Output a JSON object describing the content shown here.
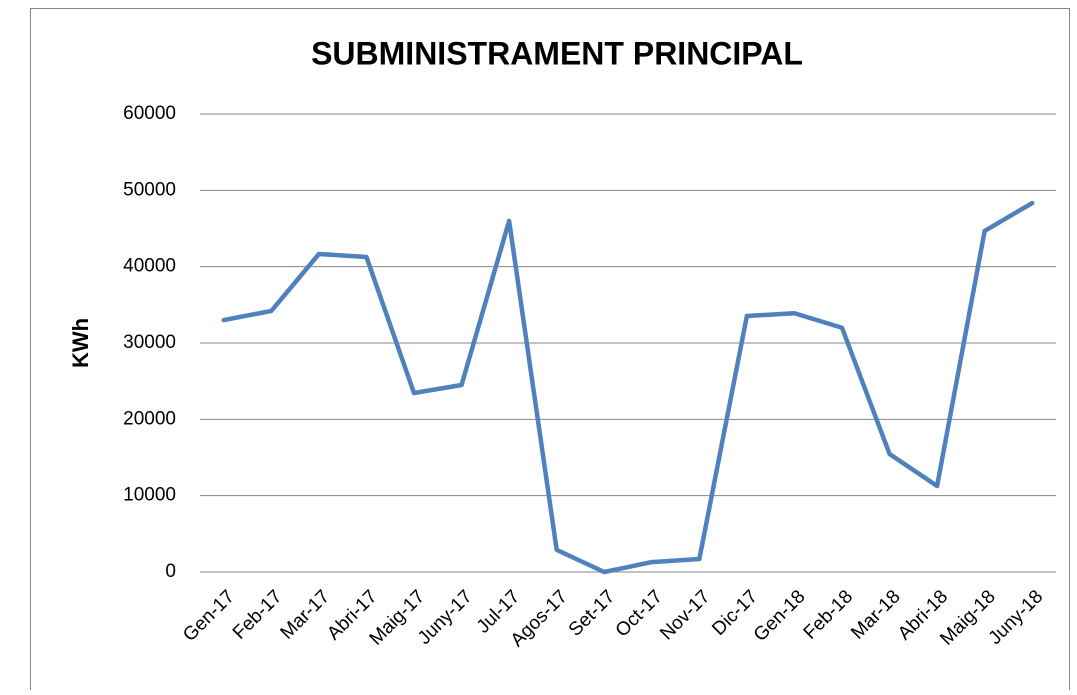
{
  "chart_data": {
    "type": "line",
    "title": "SUBMINISTRAMENT PRINCIPAL",
    "y_label": "KWh",
    "categories": [
      "Gen-17",
      "Feb-17",
      "Mar-17",
      "Abri-17",
      "Maig-17",
      "Juny-17",
      "Jul-17",
      "Agos-17",
      "Set-17",
      "Oct-17",
      "Nov-17",
      "Dic-17",
      "Gen-18",
      "Feb-18",
      "Mar-18",
      "Abri-18",
      "Maig-18",
      "Juny-18"
    ],
    "values": [
      33000,
      34200,
      41660,
      41270,
      23450,
      24500,
      46000,
      2900,
      0,
      1300,
      1700,
      33540,
      33900,
      32000,
      15460,
      11270,
      44680,
      48340
    ],
    "color": "#4f81bd",
    "ylim": [
      0,
      60000
    ],
    "yticks": [
      0,
      10000,
      20000,
      30000,
      40000,
      50000,
      60000
    ],
    "grid": true
  }
}
